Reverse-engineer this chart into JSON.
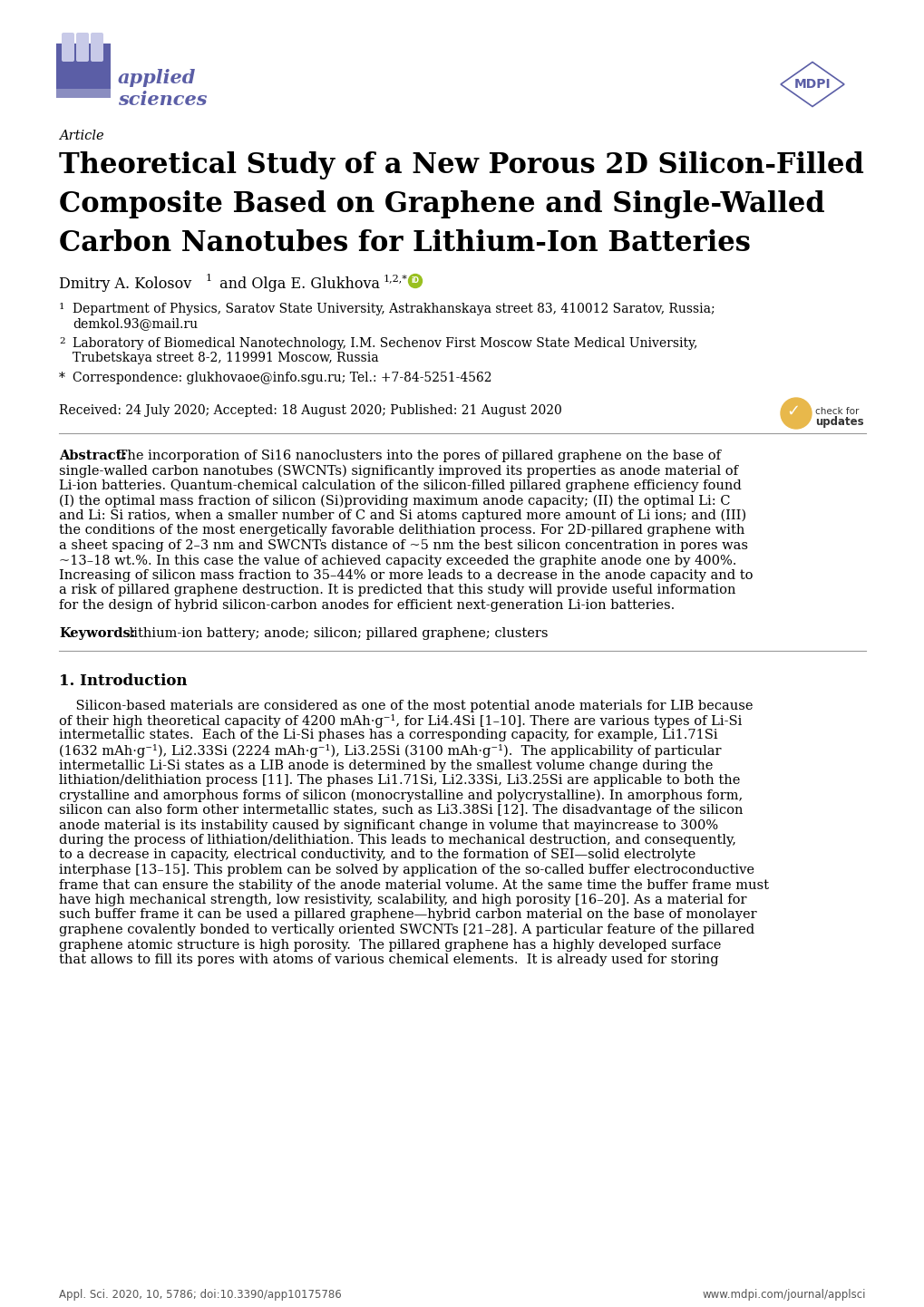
{
  "page_bg": "#ffffff",
  "logo_color": "#5b5ea6",
  "title_main_lines": [
    "Theoretical Study of a New Porous 2D Silicon-Filled",
    "Composite Based on Graphene and Single-Walled",
    "Carbon Nanotubes for Lithium-Ion Batteries"
  ],
  "article_label": "Article",
  "author_line": "Dmitry A. Kolosov",
  "author_line2": " and Olga E. Glukhova",
  "affil1_line1": "Department of Physics, Saratov State University, Astrakhanskaya street 83, 410012 Saratov, Russia;",
  "affil1_line2": "demkol.93@mail.ru",
  "affil2_line1": "Laboratory of Biomedical Nanotechnology, I.M. Sechenov First Moscow State Medical University,",
  "affil2_line2": "Trubetskaya street 8-2, 119991 Moscow, Russia",
  "affil3_line1": "Correspondence: glukhovaoe@info.sgu.ru; Tel.: +7-84-5251-4562",
  "received": "Received: 24 July 2020; Accepted: 18 August 2020; Published: 21 August 2020",
  "abstract_label": "Abstract:",
  "abstract_lines": [
    " The incorporation of Si16 nanoclusters into the pores of pillared graphene on the base of",
    "single-walled carbon nanotubes (SWCNTs) significantly improved its properties as anode material of",
    "Li-ion batteries. Quantum-chemical calculation of the silicon-filled pillared graphene efficiency found",
    "(I) the optimal mass fraction of silicon (Si)providing maximum anode capacity; (II) the optimal Li: C",
    "and Li: Si ratios, when a smaller number of C and Si atoms captured more amount of Li ions; and (III)",
    "the conditions of the most energetically favorable delithiation process. For 2D-pillared graphene with",
    "a sheet spacing of 2–3 nm and SWCNTs distance of ~5 nm the best silicon concentration in pores was",
    "~13–18 wt.%. In this case the value of achieved capacity exceeded the graphite anode one by 400%.",
    "Increasing of silicon mass fraction to 35–44% or more leads to a decrease in the anode capacity and to",
    "a risk of pillared graphene destruction. It is predicted that this study will provide useful information",
    "for the design of hybrid silicon-carbon anodes for efficient next-generation Li-ion batteries."
  ],
  "keywords_label": "Keywords:",
  "keywords_text": " lithium-ion battery; anode; silicon; pillared graphene; clusters",
  "section1_title": "1. Introduction",
  "intro_lines": [
    "    Silicon-based materials are considered as one of the most potential anode materials for LIB because",
    "of their high theoretical capacity of 4200 mAh·g⁻¹, for Li4.4Si [1–10]. There are various types of Li-Si",
    "intermetallic states.  Each of the Li-Si phases has a corresponding capacity, for example, Li1.71Si",
    "(1632 mAh·g⁻¹), Li2.33Si (2224 mAh·g⁻¹), Li3.25Si (3100 mAh·g⁻¹).  The applicability of particular",
    "intermetallic Li-Si states as a LIB anode is determined by the smallest volume change during the",
    "lithiation/delithiation process [11]. The phases Li1.71Si, Li2.33Si, Li3.25Si are applicable to both the",
    "crystalline and amorphous forms of silicon (monocrystalline and polycrystalline). In amorphous form,",
    "silicon can also form other intermetallic states, such as Li3.38Si [12]. The disadvantage of the silicon",
    "anode material is its instability caused by significant change in volume that mayincrease to 300%",
    "during the process of lithiation/delithiation. This leads to mechanical destruction, and consequently,",
    "to a decrease in capacity, electrical conductivity, and to the formation of SEI—solid electrolyte",
    "interphase [13–15]. This problem can be solved by application of the so-called buffer electroconductive",
    "frame that can ensure the stability of the anode material volume. At the same time the buffer frame must",
    "have high mechanical strength, low resistivity, scalability, and high porosity [16–20]. As a material for",
    "such buffer frame it can be used a pillared graphene—hybrid carbon material on the base of monolayer",
    "graphene covalently bonded to vertically oriented SWCNTs [21–28]. A particular feature of the pillared",
    "graphene atomic structure is high porosity.  The pillared graphene has a highly developed surface",
    "that allows to fill its pores with atoms of various chemical elements.  It is already used for storing"
  ],
  "footer_left": "Appl. Sci. 2020, 10, 5786; doi:10.3390/app10175786",
  "footer_right": "www.mdpi.com/journal/applsci"
}
